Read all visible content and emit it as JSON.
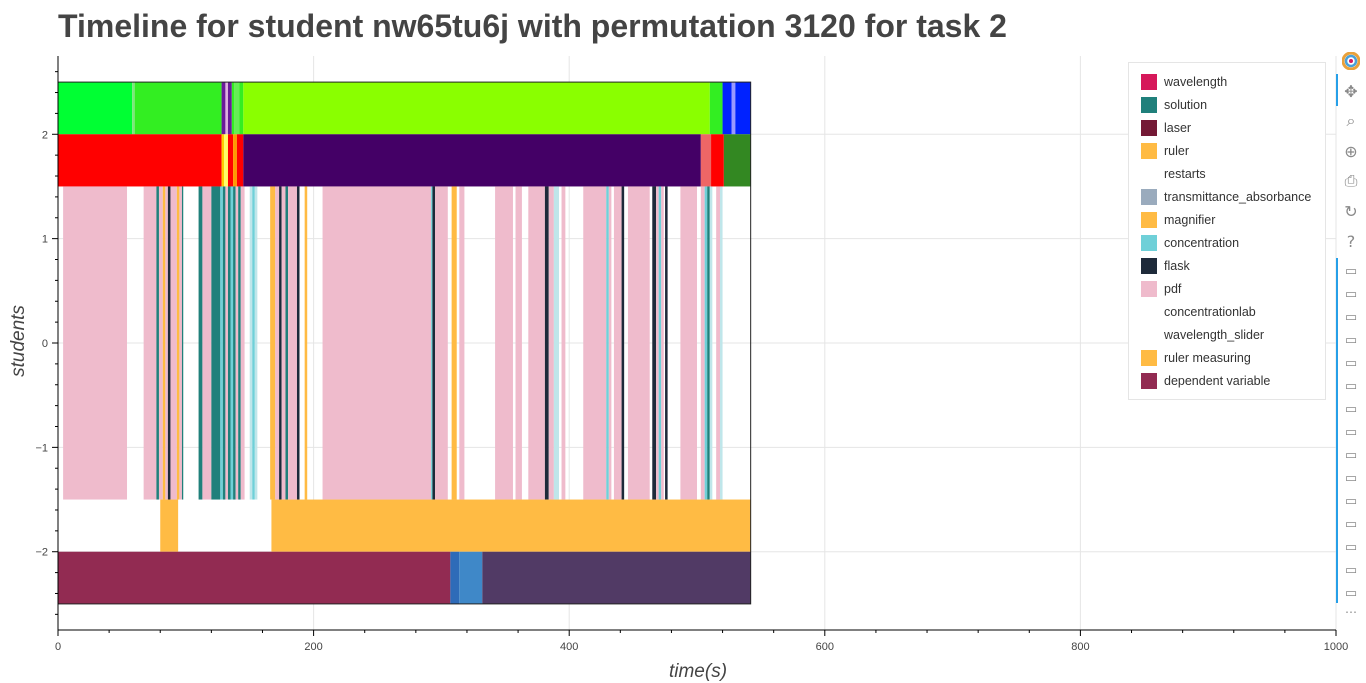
{
  "chart_data": {
    "type": "timeline",
    "title": "Timeline for student nw65tu6j with permutation 3120 for task 2",
    "xlabel": "time(s)",
    "ylabel": "students",
    "xlim": [
      0,
      1000
    ],
    "ylim": [
      -2.75,
      2.75
    ],
    "x_ticks": [
      0,
      200,
      400,
      600,
      800,
      1000
    ],
    "x_tick_labels": [
      "0",
      "200",
      "400",
      "600",
      "800",
      "1000"
    ],
    "y_ticks": [
      -2,
      -1,
      0,
      1,
      2
    ],
    "y_tick_labels": [
      "−2",
      "−1",
      "0",
      "1",
      "2"
    ],
    "grid": true,
    "legend_position": "top-right",
    "lanes": [
      {
        "y_range": [
          2,
          2.5
        ],
        "segments": [
          {
            "start": 0,
            "end": 58,
            "color": "#00ff33"
          },
          {
            "start": 58,
            "end": 60,
            "color": "#7ce67c"
          },
          {
            "start": 60,
            "end": 128,
            "color": "#33ee22"
          },
          {
            "start": 128,
            "end": 131,
            "color": "#6a1b9a"
          },
          {
            "start": 131,
            "end": 133,
            "color": "#e0b0e0"
          },
          {
            "start": 133,
            "end": 136,
            "color": "#6a1b9a"
          },
          {
            "start": 136,
            "end": 138,
            "color": "#33ee22"
          },
          {
            "start": 138,
            "end": 142,
            "color": "#66ee55"
          },
          {
            "start": 142,
            "end": 145,
            "color": "#33ee22"
          },
          {
            "start": 145,
            "end": 510,
            "color": "#8aff00"
          },
          {
            "start": 510,
            "end": 520,
            "color": "#33ee22"
          },
          {
            "start": 520,
            "end": 527,
            "color": "#0022ff"
          },
          {
            "start": 527,
            "end": 530,
            "color": "#9999ff"
          },
          {
            "start": 530,
            "end": 542,
            "color": "#0022ff"
          }
        ]
      },
      {
        "y_range": [
          1.5,
          2
        ],
        "segments": [
          {
            "start": 0,
            "end": 128,
            "color": "#ff0000"
          },
          {
            "start": 128,
            "end": 130,
            "color": "#ffcc00"
          },
          {
            "start": 130,
            "end": 133,
            "color": "#ffff66"
          },
          {
            "start": 133,
            "end": 137,
            "color": "#ff0000"
          },
          {
            "start": 137,
            "end": 140,
            "color": "#ff9900"
          },
          {
            "start": 140,
            "end": 145,
            "color": "#ff0000"
          },
          {
            "start": 145,
            "end": 503,
            "color": "#440066"
          },
          {
            "start": 503,
            "end": 511,
            "color": "#ee6666"
          },
          {
            "start": 511,
            "end": 521,
            "color": "#ff0000"
          },
          {
            "start": 521,
            "end": 542,
            "color": "#338822"
          }
        ]
      },
      {
        "y_range": [
          -1.5,
          1.5
        ],
        "segments": [
          {
            "start": 4,
            "end": 54,
            "color": "#efbbcc"
          },
          {
            "start": 67,
            "end": 77,
            "color": "#efbbcc"
          },
          {
            "start": 77,
            "end": 79,
            "color": "#20807b"
          },
          {
            "start": 79,
            "end": 82,
            "color": "#efbbcc"
          },
          {
            "start": 82,
            "end": 84,
            "color": "#ffbb44"
          },
          {
            "start": 84,
            "end": 86,
            "color": "#efbbcc"
          },
          {
            "start": 86,
            "end": 88,
            "color": "#1e2a3a"
          },
          {
            "start": 88,
            "end": 93,
            "color": "#efbbcc"
          },
          {
            "start": 93,
            "end": 95,
            "color": "#ffbb44"
          },
          {
            "start": 95,
            "end": 97,
            "color": "#efbbcc"
          },
          {
            "start": 97,
            "end": 98,
            "color": "#20807b"
          },
          {
            "start": 110,
            "end": 113,
            "color": "#20807b"
          },
          {
            "start": 113,
            "end": 120,
            "color": "#efbbcc"
          },
          {
            "start": 120,
            "end": 127,
            "color": "#20807b"
          },
          {
            "start": 127,
            "end": 129,
            "color": "#6fd0d8"
          },
          {
            "start": 129,
            "end": 131,
            "color": "#20807b"
          },
          {
            "start": 131,
            "end": 133,
            "color": "#efbbcc"
          },
          {
            "start": 133,
            "end": 135,
            "color": "#20807b"
          },
          {
            "start": 135,
            "end": 137,
            "color": "#6fd0d8"
          },
          {
            "start": 137,
            "end": 139,
            "color": "#20807b"
          },
          {
            "start": 139,
            "end": 141,
            "color": "#efbbcc"
          },
          {
            "start": 141,
            "end": 143,
            "color": "#20807b"
          },
          {
            "start": 143,
            "end": 146,
            "color": "#efbbcc"
          },
          {
            "start": 150,
            "end": 152,
            "color": "#bfe6ea"
          },
          {
            "start": 152,
            "end": 154,
            "color": "#6fd0d8"
          },
          {
            "start": 154,
            "end": 156,
            "color": "#bfe6ea"
          },
          {
            "start": 166,
            "end": 170,
            "color": "#ffbb44"
          },
          {
            "start": 170,
            "end": 173,
            "color": "#efbbcc"
          },
          {
            "start": 173,
            "end": 175,
            "color": "#1e2a3a"
          },
          {
            "start": 175,
            "end": 178,
            "color": "#efbbcc"
          },
          {
            "start": 178,
            "end": 180,
            "color": "#20807b"
          },
          {
            "start": 180,
            "end": 187,
            "color": "#efbbcc"
          },
          {
            "start": 187,
            "end": 189,
            "color": "#1e2a3a"
          },
          {
            "start": 189,
            "end": 193,
            "color": "#ffffff"
          },
          {
            "start": 193,
            "end": 195,
            "color": "#ffbb44"
          },
          {
            "start": 207,
            "end": 292,
            "color": "#efbbcc"
          },
          {
            "start": 292,
            "end": 293,
            "color": "#6fd0d8"
          },
          {
            "start": 293,
            "end": 295,
            "color": "#1e2a3a"
          },
          {
            "start": 295,
            "end": 305,
            "color": "#efbbcc"
          },
          {
            "start": 308,
            "end": 312,
            "color": "#ffbb44"
          },
          {
            "start": 314,
            "end": 318,
            "color": "#efbbcc"
          },
          {
            "start": 342,
            "end": 356,
            "color": "#efbbcc"
          },
          {
            "start": 358,
            "end": 363,
            "color": "#efbbcc"
          },
          {
            "start": 368,
            "end": 381,
            "color": "#efbbcc"
          },
          {
            "start": 381,
            "end": 384,
            "color": "#1e2a3a"
          },
          {
            "start": 384,
            "end": 388,
            "color": "#efbbcc"
          },
          {
            "start": 388,
            "end": 392,
            "color": "#bfe6ea"
          },
          {
            "start": 394,
            "end": 397,
            "color": "#efbbcc"
          },
          {
            "start": 411,
            "end": 429,
            "color": "#efbbcc"
          },
          {
            "start": 429,
            "end": 431,
            "color": "#6fd0d8"
          },
          {
            "start": 431,
            "end": 433,
            "color": "#efbbcc"
          },
          {
            "start": 435,
            "end": 441,
            "color": "#efbbcc"
          },
          {
            "start": 441,
            "end": 443,
            "color": "#1e2a3a"
          },
          {
            "start": 446,
            "end": 463,
            "color": "#efbbcc"
          },
          {
            "start": 465,
            "end": 468,
            "color": "#1e2a3a"
          },
          {
            "start": 468,
            "end": 470,
            "color": "#efbbcc"
          },
          {
            "start": 470,
            "end": 472,
            "color": "#6fd0d8"
          },
          {
            "start": 472,
            "end": 474,
            "color": "#efbbcc"
          },
          {
            "start": 475,
            "end": 477,
            "color": "#1e2a3a"
          },
          {
            "start": 487,
            "end": 500,
            "color": "#efbbcc"
          },
          {
            "start": 503,
            "end": 506,
            "color": "#efbbcc"
          },
          {
            "start": 506,
            "end": 508,
            "color": "#6fd0d8"
          },
          {
            "start": 508,
            "end": 510,
            "color": "#20807b"
          },
          {
            "start": 510,
            "end": 512,
            "color": "#bfe6ea"
          },
          {
            "start": 515,
            "end": 518,
            "color": "#efbbcc"
          },
          {
            "start": 518,
            "end": 520,
            "color": "#bfe6ea"
          }
        ]
      },
      {
        "y_range": [
          -2,
          -1.5
        ],
        "segments": [
          {
            "start": 80,
            "end": 94,
            "color": "#ffbb44"
          },
          {
            "start": 167,
            "end": 542,
            "color": "#ffbb44"
          }
        ]
      },
      {
        "y_range": [
          -2.5,
          -2
        ],
        "segments": [
          {
            "start": 0,
            "end": 307,
            "color": "#922b52"
          },
          {
            "start": 307,
            "end": 314,
            "color": "#2e6bb8"
          },
          {
            "start": 314,
            "end": 332,
            "color": "#3f88c8"
          },
          {
            "start": 332,
            "end": 542,
            "color": "#513a65"
          }
        ]
      }
    ],
    "legend": [
      {
        "label": "wavelength",
        "color": "#d6185a"
      },
      {
        "label": "solution",
        "color": "#20807b"
      },
      {
        "label": "laser",
        "color": "#741935"
      },
      {
        "label": "ruler",
        "color": "#ffbb44"
      },
      {
        "label": "restarts",
        "color": "#ffffff"
      },
      {
        "label": "transmittance_absorbance",
        "color": "#9aabbd"
      },
      {
        "label": "magnifier",
        "color": "#ffbb44"
      },
      {
        "label": "concentration",
        "color": "#6fd0d8"
      },
      {
        "label": "flask",
        "color": "#1e2a3a"
      },
      {
        "label": "pdf",
        "color": "#efbbcc"
      },
      {
        "label": "concentrationlab",
        "color": "#ffffff"
      },
      {
        "label": "wavelength_slider",
        "color": "#ffffff"
      },
      {
        "label": "ruler measuring",
        "color": "#ffbb44"
      },
      {
        "label": "dependent variable",
        "color": "#922b52"
      }
    ]
  },
  "toolbar": {
    "tools": [
      {
        "icon": "bokeh-logo-icon"
      },
      {
        "icon": "pan-icon",
        "glyph": "✥"
      },
      {
        "icon": "box-zoom-icon",
        "glyph": "⌕"
      },
      {
        "icon": "wheel-zoom-icon",
        "glyph": "⊕"
      },
      {
        "icon": "save-icon",
        "glyph": "⎙"
      },
      {
        "icon": "reset-icon",
        "glyph": "↻"
      },
      {
        "icon": "help-icon",
        "glyph": "?"
      }
    ],
    "hover_tool_count": 15,
    "hover_glyph": "▭",
    "more_glyph": "⋯"
  }
}
